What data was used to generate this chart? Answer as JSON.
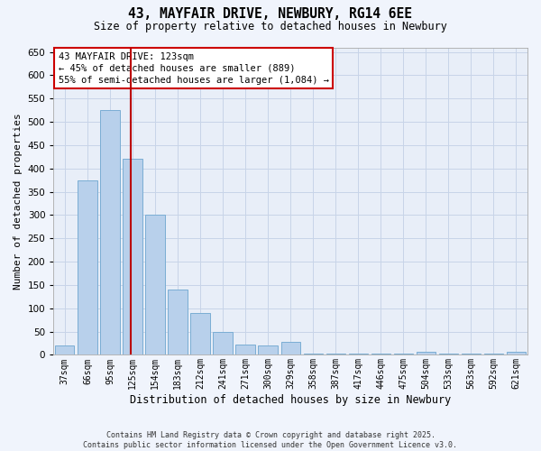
{
  "title1": "43, MAYFAIR DRIVE, NEWBURY, RG14 6EE",
  "title2": "Size of property relative to detached houses in Newbury",
  "xlabel": "Distribution of detached houses by size in Newbury",
  "ylabel": "Number of detached properties",
  "bar_color": "#b8d0eb",
  "bar_edge_color": "#7aadd4",
  "background_color": "#e8eef8",
  "fig_bg": "#f0f4fc",
  "vline_color": "#bb0000",
  "annotation_title": "43 MAYFAIR DRIVE: 123sqm",
  "annotation_line1": "← 45% of detached houses are smaller (889)",
  "annotation_line2": "55% of semi-detached houses are larger (1,084) →",
  "categories": [
    "37sqm",
    "66sqm",
    "95sqm",
    "125sqm",
    "154sqm",
    "183sqm",
    "212sqm",
    "241sqm",
    "271sqm",
    "300sqm",
    "329sqm",
    "358sqm",
    "387sqm",
    "417sqm",
    "446sqm",
    "475sqm",
    "504sqm",
    "533sqm",
    "563sqm",
    "592sqm",
    "621sqm"
  ],
  "values": [
    20,
    375,
    525,
    420,
    300,
    140,
    90,
    50,
    22,
    20,
    28,
    2,
    2,
    2,
    2,
    2,
    7,
    2,
    2,
    2,
    7
  ],
  "ylim": [
    0,
    660
  ],
  "yticks": [
    0,
    50,
    100,
    150,
    200,
    250,
    300,
    350,
    400,
    450,
    500,
    550,
    600,
    650
  ],
  "vline_xidx": 2.933,
  "footer1": "Contains HM Land Registry data © Crown copyright and database right 2025.",
  "footer2": "Contains public sector information licensed under the Open Government Licence v3.0.",
  "grid_color": "#c8d4e8",
  "ann_box_edge": "#cc0000",
  "ann_box_face": "#ffffff"
}
